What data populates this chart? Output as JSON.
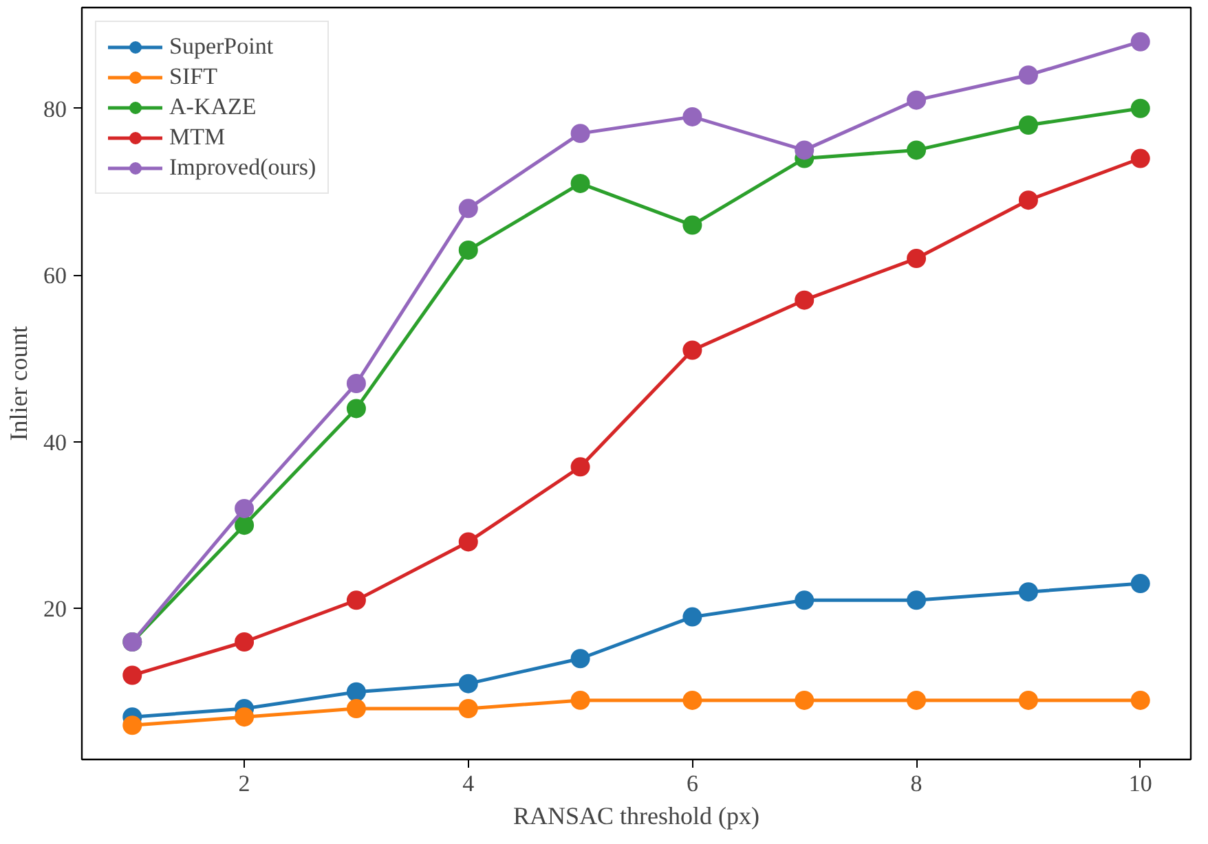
{
  "chart_data": {
    "type": "line",
    "xlabel": "RANSAC threshold (px)",
    "ylabel": "Inlier count",
    "x": [
      1,
      2,
      3,
      4,
      5,
      6,
      7,
      8,
      9,
      10
    ],
    "xlim": [
      0.55,
      10.45
    ],
    "xticks": [
      2,
      4,
      6,
      8,
      10
    ],
    "ylim": [
      1.9,
      92.1
    ],
    "yticks": [
      20,
      40,
      60,
      80
    ],
    "marker": "circle",
    "line_style": "solid",
    "grid": false,
    "legend": "top left",
    "series": [
      {
        "name": "SuperPoint",
        "color": "#1f77b4",
        "values": [
          7,
          8,
          10,
          11,
          14,
          19,
          21,
          21,
          22,
          23
        ]
      },
      {
        "name": "SIFT",
        "color": "#ff7f0e",
        "values": [
          6,
          7,
          8,
          8,
          9,
          9,
          9,
          9,
          9,
          9
        ]
      },
      {
        "name": "A-KAZE",
        "color": "#2ca02c",
        "values": [
          16,
          30,
          44,
          63,
          71,
          66,
          74,
          75,
          78,
          80
        ]
      },
      {
        "name": "MTM",
        "color": "#d62728",
        "values": [
          12,
          16,
          21,
          28,
          37,
          51,
          57,
          62,
          69,
          74
        ]
      },
      {
        "name": "Improved(ours)",
        "color": "#9467bd",
        "values": [
          16,
          32,
          47,
          68,
          77,
          79,
          75,
          81,
          84,
          88
        ]
      }
    ]
  }
}
